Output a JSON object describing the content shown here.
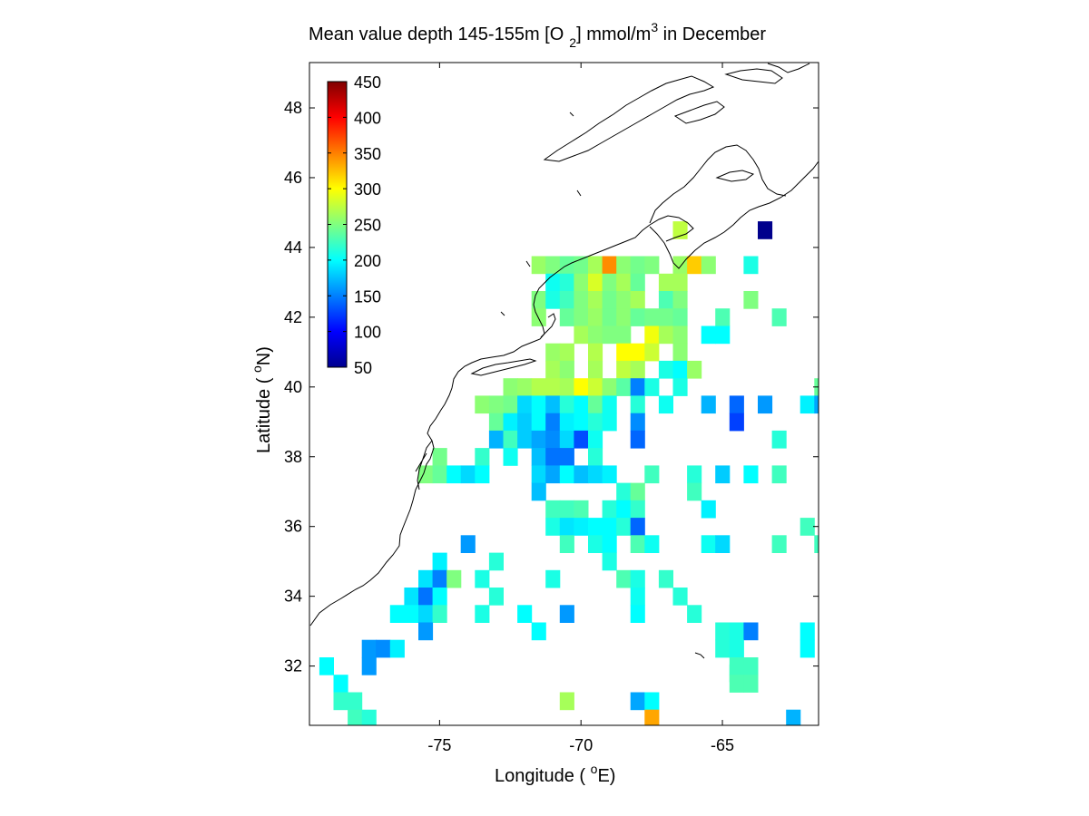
{
  "chart_data": {
    "type": "heatmap",
    "title": {
      "main": "Mean value depth 145-155m [O",
      "sub": "2",
      "unit": "] mmol/m",
      "sup": "3",
      "tail": " in December"
    },
    "xlabel": {
      "pre": "Longitude ( ",
      "sup": "o",
      "post": "E)"
    },
    "ylabel": {
      "pre": "Latitude ( ",
      "sup": "o",
      "post": "N)"
    },
    "xlim": [
      -79.6,
      -61.6
    ],
    "ylim": [
      30.3,
      49.3
    ],
    "xticks": [
      -75,
      -70,
      -65
    ],
    "xtick_labels": [
      "-75",
      "-70",
      "-65"
    ],
    "yticks": [
      32,
      34,
      36,
      38,
      40,
      42,
      44,
      46,
      48
    ],
    "ytick_labels": [
      "32",
      "34",
      "36",
      "38",
      "40",
      "42",
      "44",
      "46",
      "48"
    ],
    "grid": false,
    "colormap": "jet",
    "clim": [
      50,
      450
    ],
    "colorbar": {
      "placement": "top-left inside",
      "ticks": [
        50,
        100,
        150,
        200,
        250,
        300,
        350,
        400,
        450
      ],
      "tick_labels": [
        "50",
        "100",
        "150",
        "200",
        "250",
        "300",
        "350",
        "400",
        "450"
      ]
    },
    "cell_size_deg": 0.5,
    "cells": [
      {
        "lon": -66.5,
        "lat": 44.5,
        "v": 275
      },
      {
        "lon": -63.5,
        "lat": 44.5,
        "v": 55
      },
      {
        "lon": -71.5,
        "lat": 43.5,
        "v": 260
      },
      {
        "lon": -71.0,
        "lat": 43.5,
        "v": 250
      },
      {
        "lon": -70.5,
        "lat": 43.5,
        "v": 240
      },
      {
        "lon": -70.0,
        "lat": 43.5,
        "v": 245
      },
      {
        "lon": -69.5,
        "lat": 43.5,
        "v": 265
      },
      {
        "lon": -69.0,
        "lat": 43.5,
        "v": 345
      },
      {
        "lon": -68.5,
        "lat": 43.5,
        "v": 255
      },
      {
        "lon": -68.0,
        "lat": 43.5,
        "v": 245
      },
      {
        "lon": -67.5,
        "lat": 43.5,
        "v": 250
      },
      {
        "lon": -66.5,
        "lat": 43.5,
        "v": 260
      },
      {
        "lon": -66.0,
        "lat": 43.5,
        "v": 320
      },
      {
        "lon": -65.5,
        "lat": 43.5,
        "v": 255
      },
      {
        "lon": -64.0,
        "lat": 43.5,
        "v": 210
      },
      {
        "lon": -71.0,
        "lat": 43.0,
        "v": 205
      },
      {
        "lon": -70.5,
        "lat": 43.0,
        "v": 215
      },
      {
        "lon": -70.0,
        "lat": 43.0,
        "v": 255
      },
      {
        "lon": -69.5,
        "lat": 43.0,
        "v": 285
      },
      {
        "lon": -69.0,
        "lat": 43.0,
        "v": 250
      },
      {
        "lon": -68.5,
        "lat": 43.0,
        "v": 265
      },
      {
        "lon": -68.0,
        "lat": 43.0,
        "v": 240
      },
      {
        "lon": -67.0,
        "lat": 43.0,
        "v": 265
      },
      {
        "lon": -66.5,
        "lat": 43.0,
        "v": 265
      },
      {
        "lon": -71.5,
        "lat": 42.5,
        "v": 250
      },
      {
        "lon": -71.0,
        "lat": 42.5,
        "v": 210
      },
      {
        "lon": -70.5,
        "lat": 42.5,
        "v": 225
      },
      {
        "lon": -70.0,
        "lat": 42.5,
        "v": 250
      },
      {
        "lon": -69.5,
        "lat": 42.5,
        "v": 265
      },
      {
        "lon": -69.0,
        "lat": 42.5,
        "v": 245
      },
      {
        "lon": -68.5,
        "lat": 42.5,
        "v": 255
      },
      {
        "lon": -68.0,
        "lat": 42.5,
        "v": 265
      },
      {
        "lon": -67.0,
        "lat": 42.5,
        "v": 230
      },
      {
        "lon": -66.5,
        "lat": 42.5,
        "v": 250
      },
      {
        "lon": -64.0,
        "lat": 42.5,
        "v": 250
      },
      {
        "lon": -71.5,
        "lat": 42.0,
        "v": 255
      },
      {
        "lon": -70.5,
        "lat": 42.0,
        "v": 240
      },
      {
        "lon": -70.0,
        "lat": 42.0,
        "v": 250
      },
      {
        "lon": -69.5,
        "lat": 42.0,
        "v": 260
      },
      {
        "lon": -69.0,
        "lat": 42.0,
        "v": 245
      },
      {
        "lon": -68.5,
        "lat": 42.0,
        "v": 255
      },
      {
        "lon": -68.0,
        "lat": 42.0,
        "v": 240
      },
      {
        "lon": -67.5,
        "lat": 42.0,
        "v": 245
      },
      {
        "lon": -67.0,
        "lat": 42.0,
        "v": 245
      },
      {
        "lon": -66.5,
        "lat": 42.0,
        "v": 240
      },
      {
        "lon": -65.0,
        "lat": 42.0,
        "v": 230
      },
      {
        "lon": -63.0,
        "lat": 42.0,
        "v": 230
      },
      {
        "lon": -70.0,
        "lat": 41.5,
        "v": 265
      },
      {
        "lon": -69.5,
        "lat": 41.5,
        "v": 255
      },
      {
        "lon": -69.0,
        "lat": 41.5,
        "v": 250
      },
      {
        "lon": -68.5,
        "lat": 41.5,
        "v": 250
      },
      {
        "lon": -67.5,
        "lat": 41.5,
        "v": 295
      },
      {
        "lon": -67.0,
        "lat": 41.5,
        "v": 265
      },
      {
        "lon": -66.5,
        "lat": 41.5,
        "v": 255
      },
      {
        "lon": -65.5,
        "lat": 41.5,
        "v": 200
      },
      {
        "lon": -65.0,
        "lat": 41.5,
        "v": 200
      },
      {
        "lon": -71.0,
        "lat": 41.0,
        "v": 260
      },
      {
        "lon": -70.5,
        "lat": 41.0,
        "v": 265
      },
      {
        "lon": -69.5,
        "lat": 41.0,
        "v": 270
      },
      {
        "lon": -68.5,
        "lat": 41.0,
        "v": 300
      },
      {
        "lon": -68.0,
        "lat": 41.0,
        "v": 300
      },
      {
        "lon": -67.5,
        "lat": 41.0,
        "v": 280
      },
      {
        "lon": -66.5,
        "lat": 41.0,
        "v": 255
      },
      {
        "lon": -71.0,
        "lat": 40.5,
        "v": 265
      },
      {
        "lon": -70.5,
        "lat": 40.5,
        "v": 255
      },
      {
        "lon": -69.5,
        "lat": 40.5,
        "v": 265
      },
      {
        "lon": -68.5,
        "lat": 40.5,
        "v": 275
      },
      {
        "lon": -68.0,
        "lat": 40.5,
        "v": 265
      },
      {
        "lon": -67.0,
        "lat": 40.5,
        "v": 210
      },
      {
        "lon": -66.5,
        "lat": 40.5,
        "v": 200
      },
      {
        "lon": -66.0,
        "lat": 40.5,
        "v": 260
      },
      {
        "lon": -72.5,
        "lat": 40.0,
        "v": 255
      },
      {
        "lon": -72.0,
        "lat": 40.0,
        "v": 260
      },
      {
        "lon": -71.5,
        "lat": 40.0,
        "v": 270
      },
      {
        "lon": -71.0,
        "lat": 40.0,
        "v": 270
      },
      {
        "lon": -70.5,
        "lat": 40.0,
        "v": 265
      },
      {
        "lon": -70.0,
        "lat": 40.0,
        "v": 300
      },
      {
        "lon": -69.5,
        "lat": 40.0,
        "v": 280
      },
      {
        "lon": -69.0,
        "lat": 40.0,
        "v": 255
      },
      {
        "lon": -68.5,
        "lat": 40.0,
        "v": 235
      },
      {
        "lon": -68.0,
        "lat": 40.0,
        "v": 150
      },
      {
        "lon": -67.5,
        "lat": 40.0,
        "v": 210
      },
      {
        "lon": -66.5,
        "lat": 40.0,
        "v": 210
      },
      {
        "lon": -61.5,
        "lat": 40.0,
        "v": 240
      },
      {
        "lon": -73.5,
        "lat": 39.5,
        "v": 255
      },
      {
        "lon": -73.0,
        "lat": 39.5,
        "v": 250
      },
      {
        "lon": -72.5,
        "lat": 39.5,
        "v": 245
      },
      {
        "lon": -72.0,
        "lat": 39.5,
        "v": 185
      },
      {
        "lon": -71.5,
        "lat": 39.5,
        "v": 200
      },
      {
        "lon": -71.0,
        "lat": 39.5,
        "v": 175
      },
      {
        "lon": -70.5,
        "lat": 39.5,
        "v": 215
      },
      {
        "lon": -70.0,
        "lat": 39.5,
        "v": 200
      },
      {
        "lon": -69.5,
        "lat": 39.5,
        "v": 240
      },
      {
        "lon": -69.0,
        "lat": 39.5,
        "v": 205
      },
      {
        "lon": -68.0,
        "lat": 39.5,
        "v": 215
      },
      {
        "lon": -67.0,
        "lat": 39.5,
        "v": 205
      },
      {
        "lon": -65.5,
        "lat": 39.5,
        "v": 170
      },
      {
        "lon": -64.5,
        "lat": 39.5,
        "v": 140
      },
      {
        "lon": -63.5,
        "lat": 39.5,
        "v": 160
      },
      {
        "lon": -62.0,
        "lat": 39.5,
        "v": 195
      },
      {
        "lon": -61.5,
        "lat": 39.5,
        "v": 165
      },
      {
        "lon": -73.0,
        "lat": 39.0,
        "v": 240
      },
      {
        "lon": -72.5,
        "lat": 39.0,
        "v": 195
      },
      {
        "lon": -72.0,
        "lat": 39.0,
        "v": 180
      },
      {
        "lon": -71.5,
        "lat": 39.0,
        "v": 200
      },
      {
        "lon": -71.0,
        "lat": 39.0,
        "v": 150
      },
      {
        "lon": -70.5,
        "lat": 39.0,
        "v": 195
      },
      {
        "lon": -70.0,
        "lat": 39.0,
        "v": 200
      },
      {
        "lon": -69.5,
        "lat": 39.0,
        "v": 215
      },
      {
        "lon": -69.0,
        "lat": 39.0,
        "v": 205
      },
      {
        "lon": -68.0,
        "lat": 39.0,
        "v": 155
      },
      {
        "lon": -64.5,
        "lat": 39.0,
        "v": 125
      },
      {
        "lon": -73.0,
        "lat": 38.5,
        "v": 170
      },
      {
        "lon": -72.5,
        "lat": 38.5,
        "v": 225
      },
      {
        "lon": -72.0,
        "lat": 38.5,
        "v": 180
      },
      {
        "lon": -71.5,
        "lat": 38.5,
        "v": 165
      },
      {
        "lon": -71.0,
        "lat": 38.5,
        "v": 155
      },
      {
        "lon": -70.5,
        "lat": 38.5,
        "v": 185
      },
      {
        "lon": -70.0,
        "lat": 38.5,
        "v": 130
      },
      {
        "lon": -69.5,
        "lat": 38.5,
        "v": 205
      },
      {
        "lon": -68.0,
        "lat": 38.5,
        "v": 140
      },
      {
        "lon": -63.0,
        "lat": 38.5,
        "v": 215
      },
      {
        "lon": -75.0,
        "lat": 38.0,
        "v": 245
      },
      {
        "lon": -73.5,
        "lat": 38.0,
        "v": 220
      },
      {
        "lon": -72.5,
        "lat": 38.0,
        "v": 205
      },
      {
        "lon": -71.5,
        "lat": 38.0,
        "v": 175
      },
      {
        "lon": -71.0,
        "lat": 38.0,
        "v": 145
      },
      {
        "lon": -70.5,
        "lat": 38.0,
        "v": 145
      },
      {
        "lon": -69.5,
        "lat": 38.0,
        "v": 215
      },
      {
        "lon": -75.5,
        "lat": 37.5,
        "v": 250
      },
      {
        "lon": -75.0,
        "lat": 37.5,
        "v": 240
      },
      {
        "lon": -74.5,
        "lat": 37.5,
        "v": 200
      },
      {
        "lon": -74.0,
        "lat": 37.5,
        "v": 185
      },
      {
        "lon": -73.5,
        "lat": 37.5,
        "v": 200
      },
      {
        "lon": -71.5,
        "lat": 37.5,
        "v": 185
      },
      {
        "lon": -71.0,
        "lat": 37.5,
        "v": 165
      },
      {
        "lon": -70.5,
        "lat": 37.5,
        "v": 200
      },
      {
        "lon": -70.0,
        "lat": 37.5,
        "v": 175
      },
      {
        "lon": -69.5,
        "lat": 37.5,
        "v": 185
      },
      {
        "lon": -69.0,
        "lat": 37.5,
        "v": 195
      },
      {
        "lon": -67.5,
        "lat": 37.5,
        "v": 225
      },
      {
        "lon": -66.0,
        "lat": 37.5,
        "v": 215
      },
      {
        "lon": -65.0,
        "lat": 37.5,
        "v": 180
      },
      {
        "lon": -64.0,
        "lat": 37.5,
        "v": 200
      },
      {
        "lon": -63.0,
        "lat": 37.5,
        "v": 225
      },
      {
        "lon": -71.5,
        "lat": 37.0,
        "v": 175
      },
      {
        "lon": -68.5,
        "lat": 37.0,
        "v": 215
      },
      {
        "lon": -68.0,
        "lat": 37.0,
        "v": 240
      },
      {
        "lon": -66.0,
        "lat": 37.0,
        "v": 225
      },
      {
        "lon": -71.0,
        "lat": 36.5,
        "v": 225
      },
      {
        "lon": -70.5,
        "lat": 36.5,
        "v": 225
      },
      {
        "lon": -70.0,
        "lat": 36.5,
        "v": 230
      },
      {
        "lon": -69.0,
        "lat": 36.5,
        "v": 215
      },
      {
        "lon": -68.5,
        "lat": 36.5,
        "v": 200
      },
      {
        "lon": -68.0,
        "lat": 36.5,
        "v": 220
      },
      {
        "lon": -65.5,
        "lat": 36.5,
        "v": 195
      },
      {
        "lon": -71.0,
        "lat": 36.0,
        "v": 210
      },
      {
        "lon": -70.5,
        "lat": 36.0,
        "v": 190
      },
      {
        "lon": -70.0,
        "lat": 36.0,
        "v": 195
      },
      {
        "lon": -69.5,
        "lat": 36.0,
        "v": 200
      },
      {
        "lon": -69.0,
        "lat": 36.0,
        "v": 200
      },
      {
        "lon": -68.5,
        "lat": 36.0,
        "v": 215
      },
      {
        "lon": -68.0,
        "lat": 36.0,
        "v": 140
      },
      {
        "lon": -62.0,
        "lat": 36.0,
        "v": 225
      },
      {
        "lon": -74.0,
        "lat": 35.5,
        "v": 160
      },
      {
        "lon": -70.5,
        "lat": 35.5,
        "v": 225
      },
      {
        "lon": -69.5,
        "lat": 35.5,
        "v": 210
      },
      {
        "lon": -69.0,
        "lat": 35.5,
        "v": 200
      },
      {
        "lon": -68.0,
        "lat": 35.5,
        "v": 230
      },
      {
        "lon": -67.5,
        "lat": 35.5,
        "v": 205
      },
      {
        "lon": -65.5,
        "lat": 35.5,
        "v": 205
      },
      {
        "lon": -65.0,
        "lat": 35.5,
        "v": 185
      },
      {
        "lon": -63.0,
        "lat": 35.5,
        "v": 225
      },
      {
        "lon": -61.5,
        "lat": 35.5,
        "v": 225
      },
      {
        "lon": -75.0,
        "lat": 35.0,
        "v": 195
      },
      {
        "lon": -73.0,
        "lat": 35.0,
        "v": 215
      },
      {
        "lon": -69.0,
        "lat": 35.0,
        "v": 210
      },
      {
        "lon": -75.5,
        "lat": 34.5,
        "v": 190
      },
      {
        "lon": -75.0,
        "lat": 34.5,
        "v": 150
      },
      {
        "lon": -74.5,
        "lat": 34.5,
        "v": 250
      },
      {
        "lon": -73.5,
        "lat": 34.5,
        "v": 210
      },
      {
        "lon": -71.0,
        "lat": 34.5,
        "v": 210
      },
      {
        "lon": -68.5,
        "lat": 34.5,
        "v": 230
      },
      {
        "lon": -68.0,
        "lat": 34.5,
        "v": 210
      },
      {
        "lon": -67.0,
        "lat": 34.5,
        "v": 220
      },
      {
        "lon": -76.0,
        "lat": 34.0,
        "v": 190
      },
      {
        "lon": -75.5,
        "lat": 34.0,
        "v": 145
      },
      {
        "lon": -75.0,
        "lat": 34.0,
        "v": 200
      },
      {
        "lon": -73.0,
        "lat": 34.0,
        "v": 215
      },
      {
        "lon": -68.0,
        "lat": 34.0,
        "v": 205
      },
      {
        "lon": -66.5,
        "lat": 34.0,
        "v": 215
      },
      {
        "lon": -76.5,
        "lat": 33.5,
        "v": 200
      },
      {
        "lon": -76.0,
        "lat": 33.5,
        "v": 200
      },
      {
        "lon": -75.5,
        "lat": 33.5,
        "v": 185
      },
      {
        "lon": -75.0,
        "lat": 33.5,
        "v": 220
      },
      {
        "lon": -73.5,
        "lat": 33.5,
        "v": 210
      },
      {
        "lon": -72.0,
        "lat": 33.5,
        "v": 200
      },
      {
        "lon": -70.5,
        "lat": 33.5,
        "v": 160
      },
      {
        "lon": -68.0,
        "lat": 33.5,
        "v": 200
      },
      {
        "lon": -66.0,
        "lat": 33.5,
        "v": 215
      },
      {
        "lon": -75.5,
        "lat": 33.0,
        "v": 160
      },
      {
        "lon": -71.5,
        "lat": 33.0,
        "v": 200
      },
      {
        "lon": -65.0,
        "lat": 33.0,
        "v": 215
      },
      {
        "lon": -64.5,
        "lat": 33.0,
        "v": 210
      },
      {
        "lon": -64.0,
        "lat": 33.0,
        "v": 150
      },
      {
        "lon": -62.0,
        "lat": 33.0,
        "v": 200
      },
      {
        "lon": -77.5,
        "lat": 32.5,
        "v": 160
      },
      {
        "lon": -77.0,
        "lat": 32.5,
        "v": 155
      },
      {
        "lon": -76.5,
        "lat": 32.5,
        "v": 195
      },
      {
        "lon": -65.0,
        "lat": 32.5,
        "v": 215
      },
      {
        "lon": -64.5,
        "lat": 32.5,
        "v": 210
      },
      {
        "lon": -62.0,
        "lat": 32.5,
        "v": 200
      },
      {
        "lon": -79.0,
        "lat": 32.0,
        "v": 200
      },
      {
        "lon": -77.5,
        "lat": 32.0,
        "v": 160
      },
      {
        "lon": -64.5,
        "lat": 32.0,
        "v": 225
      },
      {
        "lon": -64.0,
        "lat": 32.0,
        "v": 225
      },
      {
        "lon": -64.5,
        "lat": 31.8,
        "v": 225
      },
      {
        "lon": -78.5,
        "lat": 31.5,
        "v": 200
      },
      {
        "lon": -64.5,
        "lat": 31.5,
        "v": 230
      },
      {
        "lon": -64.0,
        "lat": 31.5,
        "v": 230
      },
      {
        "lon": -78.5,
        "lat": 31.0,
        "v": 220
      },
      {
        "lon": -78.0,
        "lat": 31.0,
        "v": 220
      },
      {
        "lon": -70.5,
        "lat": 31.0,
        "v": 265
      },
      {
        "lon": -68.0,
        "lat": 31.0,
        "v": 165
      },
      {
        "lon": -67.5,
        "lat": 31.0,
        "v": 200
      },
      {
        "lon": -78.0,
        "lat": 30.5,
        "v": 225
      },
      {
        "lon": -77.5,
        "lat": 30.5,
        "v": 215
      },
      {
        "lon": -67.5,
        "lat": 30.5,
        "v": 335
      },
      {
        "lon": -62.5,
        "lat": 30.5,
        "v": 170
      }
    ]
  }
}
